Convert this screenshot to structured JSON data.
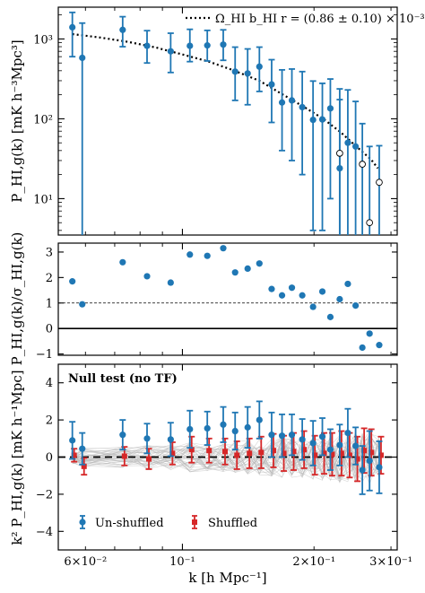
{
  "colors": {
    "blue": "#1f77b4",
    "red": "#d62728",
    "frame": "#000000",
    "mock": "#b4b4b4"
  },
  "labels": {
    "xlabel": "k [h Mpc⁻¹]",
    "top_ylabel": "P_HI,g(k) [mK h⁻³Mpc³]",
    "mid_ylabel": "P_HI,g(k)/σ_HI,g(k)",
    "bot_ylabel": "k² P_HI,g(k) [mK h⁻¹Mpc]",
    "top_legend": "Ω_HI b_HI r = (0.86 ± 0.10) × 10⁻³",
    "null_title": "Null test (no TF)",
    "legend_unshuffled": "Un-shuffled",
    "legend_shuffled": "Shuffled"
  },
  "chart_data": [
    {
      "type": "scatter",
      "panel": "power-spectrum",
      "xscale": "log",
      "yscale": "log",
      "xlim": [
        0.052,
        0.31
      ],
      "ylim": [
        3.5,
        2500
      ],
      "xlabel": "k [h Mpc⁻¹]",
      "ylabel": "P_HI,g(k) [mK h⁻³Mpc³]",
      "yticks": [
        {
          "v": 10,
          "label": "10¹"
        },
        {
          "v": 100,
          "label": "10²"
        },
        {
          "v": 1000,
          "label": "10³"
        }
      ],
      "legend": "top-right",
      "series": [
        {
          "name": "Ω_HI b_HI r = (0.86 ± 0.10) × 10⁻³",
          "kind": "model-line",
          "style": "dotted",
          "x": [
            0.056,
            0.065,
            0.075,
            0.087,
            0.1,
            0.115,
            0.13,
            0.15,
            0.17,
            0.19,
            0.21,
            0.23,
            0.25,
            0.27,
            0.28
          ],
          "y": [
            1150,
            1040,
            920,
            780,
            640,
            520,
            410,
            300,
            200,
            140,
            100,
            68,
            45,
            31,
            24
          ]
        },
        {
          "kind": "detections",
          "x": [
            0.056,
            0.059,
            0.073,
            0.083,
            0.094,
            0.104,
            0.114,
            0.124,
            0.132,
            0.141,
            0.15,
            0.16,
            0.169,
            0.178,
            0.188,
            0.199,
            0.209,
            0.218,
            0.229,
            0.239,
            0.249
          ],
          "y": [
            1400,
            580,
            1300,
            820,
            700,
            820,
            830,
            850,
            390,
            370,
            450,
            270,
            160,
            170,
            140,
            97,
            98,
            135,
            24,
            50,
            45
          ],
          "yerr_low": [
            800,
            577,
            500,
            320,
            320,
            300,
            300,
            310,
            220,
            220,
            230,
            180,
            120,
            140,
            120,
            93,
            94,
            125,
            23,
            49,
            42
          ],
          "yerr_high": [
            750,
            1000,
            600,
            450,
            480,
            500,
            450,
            450,
            400,
            380,
            340,
            280,
            250,
            250,
            250,
            200,
            180,
            180,
            150,
            180,
            120
          ]
        },
        {
          "kind": "negative-values",
          "x": [
            0.229,
            0.258,
            0.268,
            0.282
          ],
          "y": [
            37,
            27,
            5,
            16
          ],
          "yerr_low": [
            36,
            26,
            4.9,
            15.9
          ],
          "yerr_high": [
            200,
            60,
            40,
            30
          ]
        }
      ]
    },
    {
      "type": "scatter",
      "panel": "signal-to-noise",
      "xscale": "log",
      "yscale": "linear",
      "xlim": [
        0.052,
        0.31
      ],
      "ylim": [
        -1.05,
        3.35
      ],
      "ylabel": "P_HI,g(k)/σ_HI,g(k)",
      "yticks": [
        -1,
        0,
        1,
        2,
        3
      ],
      "reference_lines": [
        1,
        0
      ],
      "series": [
        {
          "name": "Un-shuffled",
          "x": [
            0.056,
            0.059,
            0.073,
            0.083,
            0.094,
            0.104,
            0.114,
            0.124,
            0.132,
            0.141,
            0.15,
            0.16,
            0.169,
            0.178,
            0.188,
            0.199,
            0.209,
            0.218,
            0.229,
            0.239,
            0.249,
            0.258,
            0.268,
            0.282
          ],
          "y": [
            1.85,
            0.95,
            2.6,
            2.05,
            1.8,
            2.9,
            2.85,
            3.15,
            2.2,
            2.35,
            2.55,
            1.55,
            1.3,
            1.6,
            1.3,
            0.85,
            1.45,
            0.45,
            1.15,
            1.75,
            0.9,
            -0.75,
            -0.2,
            -0.65
          ]
        }
      ]
    },
    {
      "type": "scatter",
      "panel": "null-test",
      "xscale": "log",
      "yscale": "linear",
      "xlim": [
        0.052,
        0.31
      ],
      "ylim": [
        -5.0,
        5.0
      ],
      "ylabel": "k² P_HI,g(k) [mK h⁻¹Mpc]",
      "yticks": [
        -4,
        -2,
        0,
        2,
        4
      ],
      "xticks": [
        {
          "v": 0.06,
          "label": "6×10⁻²"
        },
        {
          "v": 0.1,
          "label": "10⁻¹"
        },
        {
          "v": 0.2,
          "label": "2×10⁻¹"
        },
        {
          "v": 0.3,
          "label": "3×10⁻¹"
        }
      ],
      "reference_lines": [
        0
      ],
      "legend": "lower-left",
      "series": [
        {
          "name": "Un-shuffled",
          "x": [
            0.056,
            0.059,
            0.073,
            0.083,
            0.094,
            0.104,
            0.114,
            0.124,
            0.132,
            0.141,
            0.15,
            0.16,
            0.169,
            0.178,
            0.188,
            0.199,
            0.209,
            0.218,
            0.229,
            0.239,
            0.249,
            0.258,
            0.268,
            0.282
          ],
          "y": [
            0.9,
            0.45,
            1.2,
            1.0,
            0.95,
            1.5,
            1.55,
            1.75,
            1.4,
            1.6,
            2.0,
            1.2,
            1.15,
            1.2,
            0.95,
            0.75,
            1.1,
            0.4,
            0.65,
            1.3,
            0.6,
            -0.7,
            -0.2,
            -0.55
          ],
          "yerr": [
            1.0,
            0.85,
            0.8,
            0.8,
            0.9,
            1.0,
            0.9,
            0.95,
            1.0,
            1.1,
            1.0,
            1.2,
            1.15,
            1.1,
            1.1,
            1.2,
            1.0,
            1.1,
            1.1,
            1.3,
            1.0,
            1.3,
            1.6,
            1.4
          ]
        },
        {
          "name": "Shuffled",
          "x": [
            0.056,
            0.059,
            0.073,
            0.083,
            0.094,
            0.104,
            0.114,
            0.124,
            0.132,
            0.141,
            0.15,
            0.16,
            0.169,
            0.178,
            0.188,
            0.199,
            0.209,
            0.218,
            0.229,
            0.239,
            0.249,
            0.258,
            0.268,
            0.282
          ],
          "y": [
            0.1,
            -0.5,
            0.05,
            -0.1,
            0.2,
            0.4,
            0.35,
            0.3,
            0.1,
            0.2,
            0.25,
            0.35,
            0.2,
            0.3,
            0.4,
            0.1,
            0.2,
            0.15,
            0.2,
            0.1,
            -0.1,
            0.35,
            0.25,
            0.1
          ],
          "yerr": [
            0.35,
            0.45,
            0.5,
            0.55,
            0.6,
            0.7,
            0.65,
            0.7,
            0.75,
            0.8,
            0.85,
            0.9,
            0.95,
            1.0,
            1.0,
            1.05,
            1.1,
            1.15,
            1.2,
            1.2,
            1.2,
            1.2,
            1.25,
            1.0
          ]
        }
      ]
    }
  ]
}
